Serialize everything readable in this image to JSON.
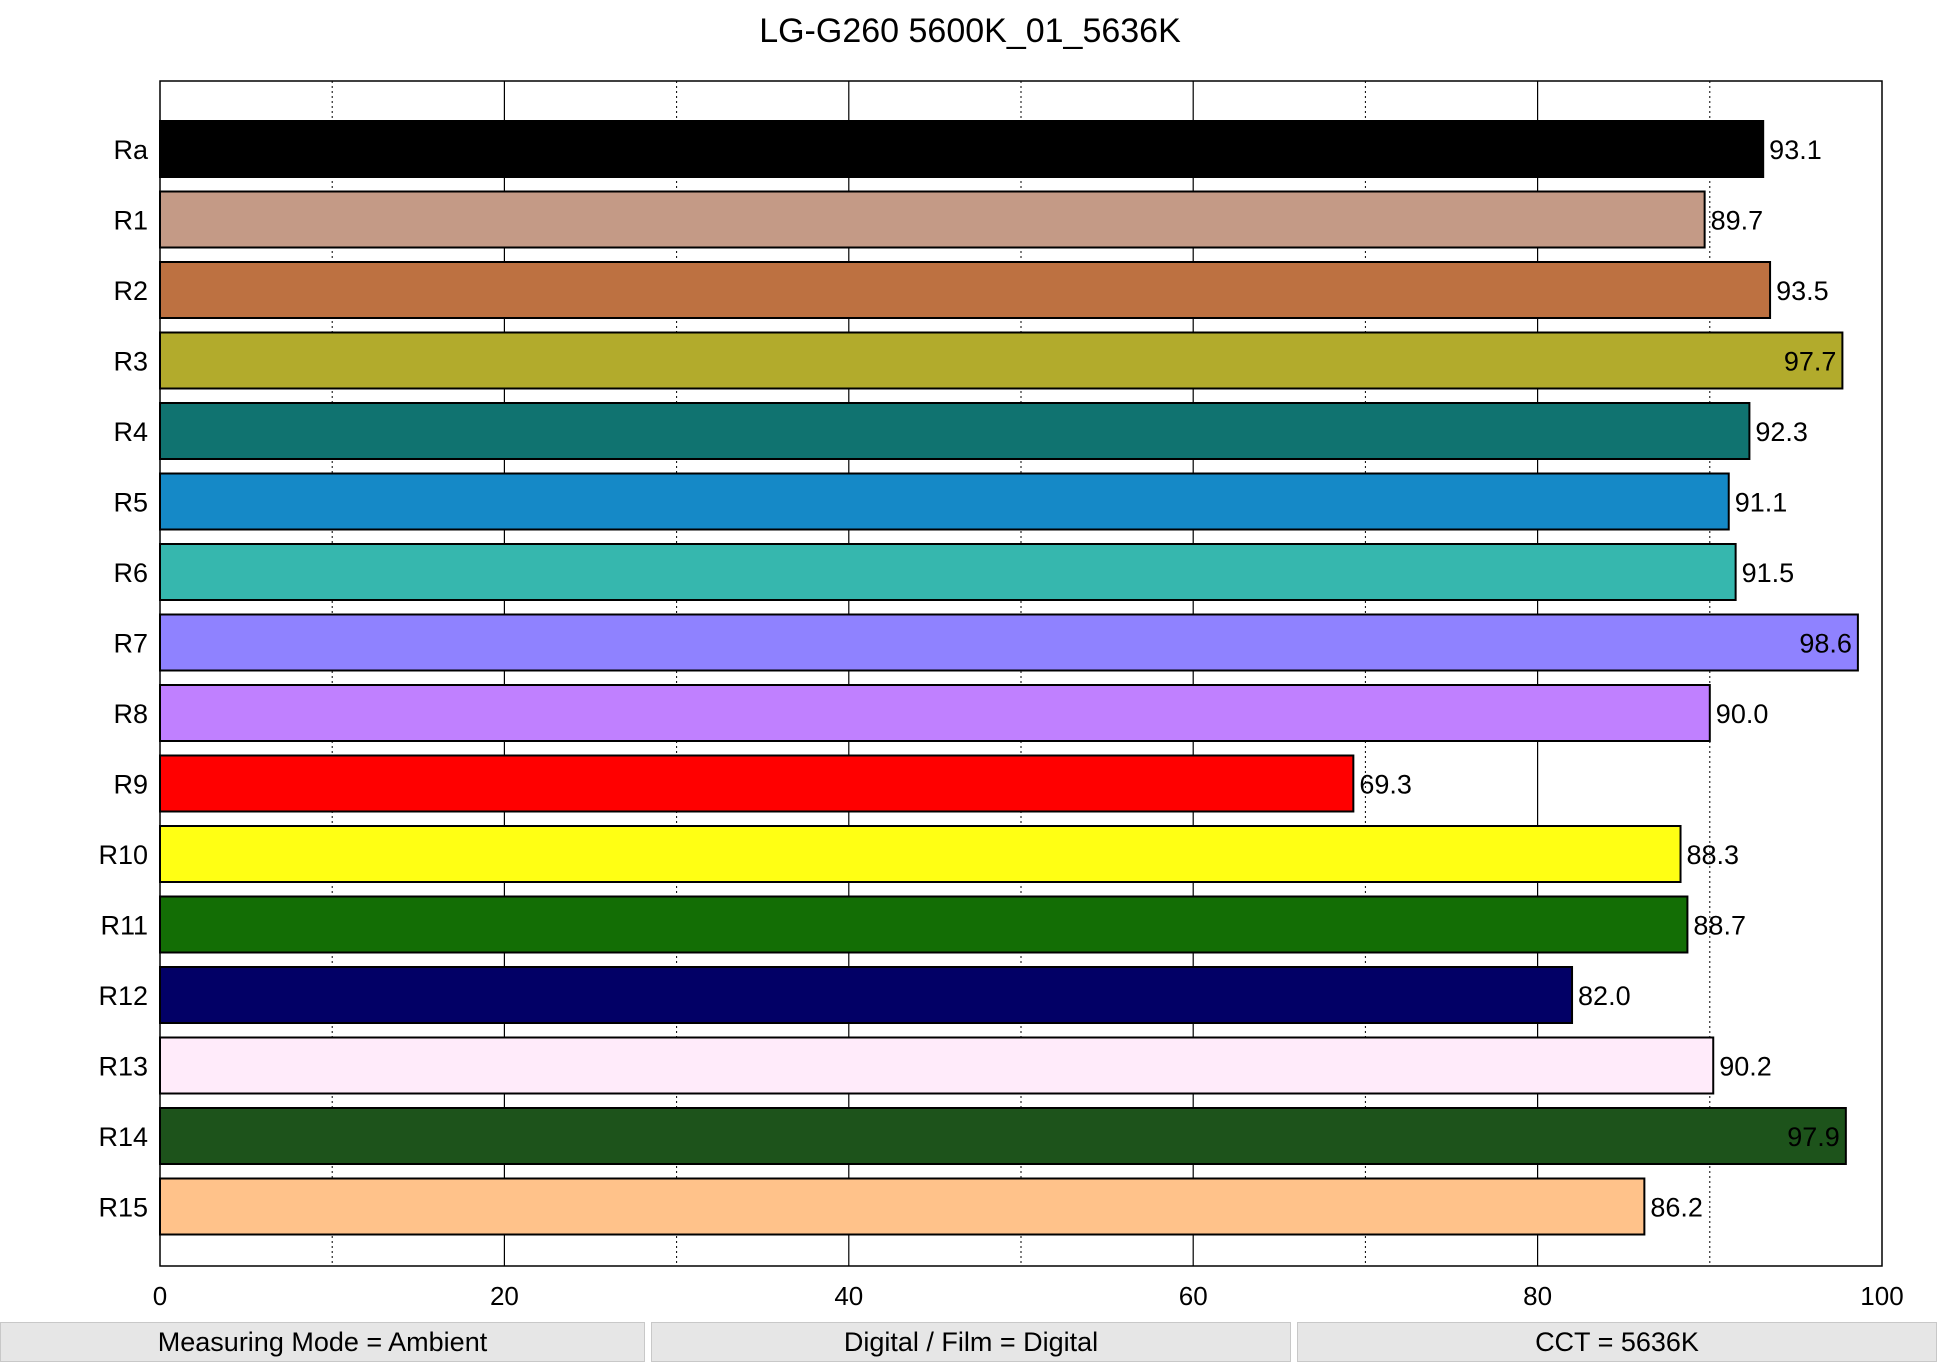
{
  "chart_data": {
    "type": "bar",
    "orientation": "horizontal",
    "title": "LG-G260 5600K_01_5636K",
    "xlim": [
      0,
      100
    ],
    "x_ticks": [
      "0",
      "20",
      "40",
      "60",
      "80",
      "100"
    ],
    "grid": true,
    "categories": [
      "Ra",
      "R1",
      "R2",
      "R3",
      "R4",
      "R5",
      "R6",
      "R7",
      "R8",
      "R9",
      "R10",
      "R11",
      "R12",
      "R13",
      "R14",
      "R15"
    ],
    "values": [
      93.1,
      89.7,
      93.5,
      97.7,
      92.3,
      91.1,
      91.5,
      98.6,
      90.0,
      69.3,
      88.3,
      88.7,
      82.0,
      90.2,
      97.9,
      86.2
    ],
    "value_labels": [
      "93.1",
      "89.7",
      "93.5",
      "97.7",
      "92.3",
      "91.1",
      "91.5",
      "98.6",
      "90.0",
      "69.3",
      "88.3",
      "88.7",
      "82.0",
      "90.2",
      "97.9",
      "86.2"
    ],
    "colors": [
      "#000000",
      "#c49a86",
      "#bd7141",
      "#b2ab2c",
      "#107370",
      "#1589c7",
      "#36b7ae",
      "#8f82ff",
      "#c080ff",
      "#ff0000",
      "#ffff14",
      "#136e05",
      "#020066",
      "#ffebfa",
      "#1d531b",
      "#ffc28a"
    ]
  },
  "footer": {
    "measuring_mode": "Measuring Mode = Ambient",
    "digital_film": "Digital / Film = Digital",
    "cct": "CCT = 5636K"
  }
}
